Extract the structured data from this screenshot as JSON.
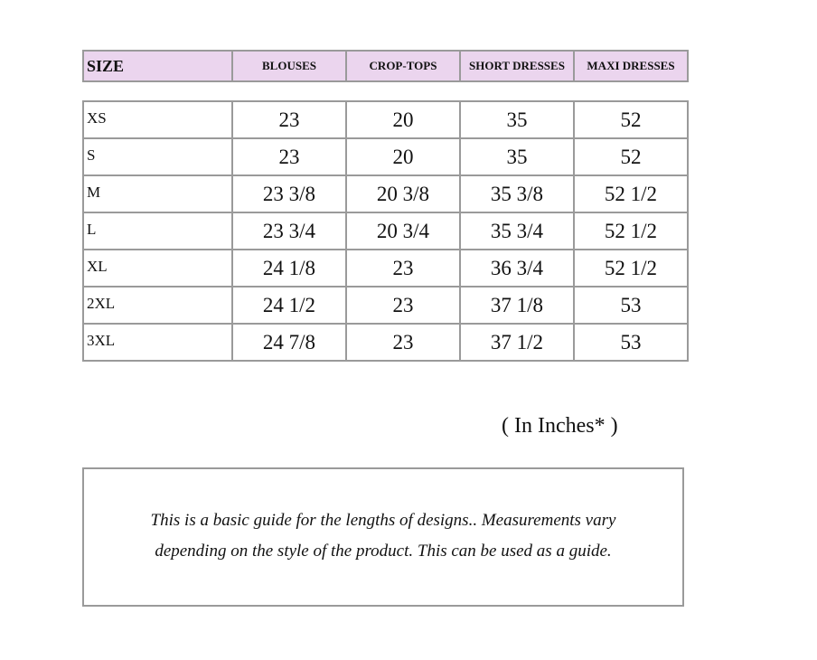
{
  "header": {
    "size": "SIZE",
    "columns": [
      "BLOUSES",
      "CROP-TOPS",
      "SHORT DRESSES",
      "MAXI DRESSES"
    ]
  },
  "header_color": "#ebd5ee",
  "rows": [
    {
      "size": "XS",
      "values": [
        "23",
        "20",
        "35",
        "52"
      ]
    },
    {
      "size": "S",
      "values": [
        "23",
        "20",
        "35",
        "52"
      ]
    },
    {
      "size": "M",
      "values": [
        "23 3/8",
        "20 3/8",
        "35 3/8",
        "52 1/2"
      ]
    },
    {
      "size": "L",
      "values": [
        "23 3/4",
        "20 3/4",
        "35 3/4",
        "52 1/2"
      ]
    },
    {
      "size": "XL",
      "values": [
        "24 1/8",
        "23",
        "36 3/4",
        "52 1/2"
      ]
    },
    {
      "size": "2XL",
      "values": [
        "24 1/2",
        "23",
        "37 1/8",
        "53"
      ]
    },
    {
      "size": "3XL",
      "values": [
        "24 7/8",
        "23",
        "37 1/2",
        "53"
      ]
    }
  ],
  "unit_note": "( In Inches* )",
  "note": "This is a basic guide for the lengths of designs.. Measurements vary depending on the style of the product. This can be used as a guide."
}
